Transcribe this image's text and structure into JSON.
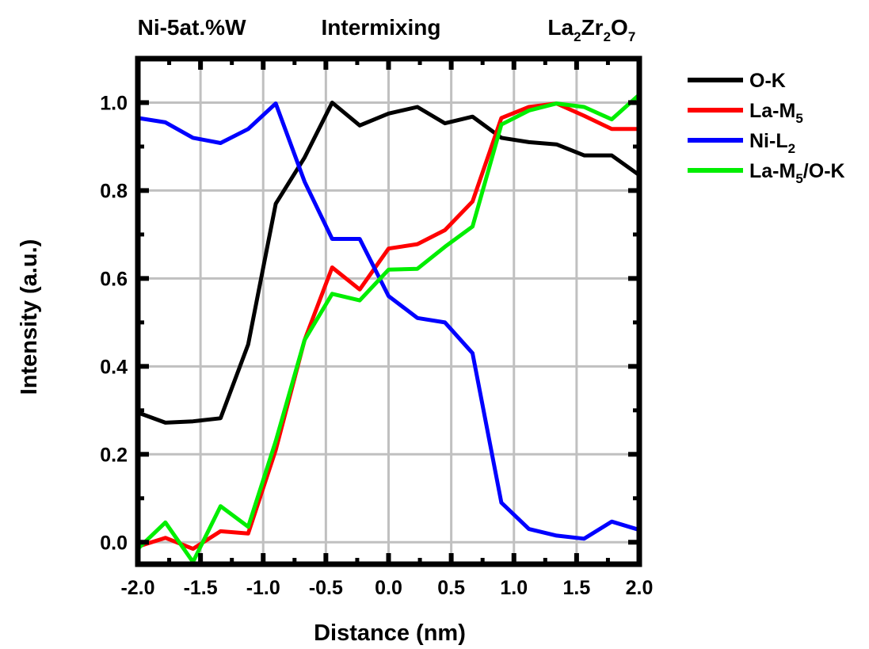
{
  "chart_data": {
    "type": "line",
    "xlabel": "Distance (nm)",
    "ylabel": "Intensity (a.u.)",
    "xlim": [
      -2.0,
      2.0
    ],
    "ylim": [
      -0.05,
      1.1
    ],
    "x_ticks": [
      -2.0,
      -1.5,
      -1.0,
      -0.5,
      0.0,
      0.5,
      1.0,
      1.5,
      2.0
    ],
    "x_tick_labels": [
      "-2.0",
      "-1.5",
      "-1.0",
      "-0.5",
      "0.0",
      "0.5",
      "1.0",
      "1.5",
      "2.0"
    ],
    "y_ticks": [
      0.0,
      0.2,
      0.4,
      0.6,
      0.8,
      1.0
    ],
    "y_tick_labels": [
      "0.0",
      "0.2",
      "0.4",
      "0.6",
      "0.8",
      "1.0"
    ],
    "grid": true,
    "legend_position": "outside-right",
    "region_labels": [
      {
        "text": "Ni-5at.%W",
        "x": -1.57
      },
      {
        "text": "Intermixing",
        "x": -0.06
      },
      {
        "text": "La",
        "sub": "2",
        "text2": "Zr",
        "sub2": "2",
        "text3": "O",
        "sub3": "7",
        "x": 1.62
      }
    ],
    "x": [
      -2.0,
      -1.78,
      -1.56,
      -1.34,
      -1.12,
      -0.9,
      -0.67,
      -0.45,
      -0.23,
      0.0,
      0.23,
      0.45,
      0.67,
      0.9,
      1.12,
      1.34,
      1.56,
      1.78,
      2.0
    ],
    "series": [
      {
        "name": "O-K",
        "name_main": "O-K",
        "name_sub": "",
        "name_tail": "",
        "color": "#000000",
        "values": [
          0.295,
          0.272,
          0.275,
          0.282,
          0.45,
          0.77,
          0.875,
          1.0,
          0.948,
          0.975,
          0.99,
          0.953,
          0.968,
          0.92,
          0.91,
          0.905,
          0.88,
          0.88,
          0.835
        ]
      },
      {
        "name": "La-M5",
        "name_main": "La-M",
        "name_sub": "5",
        "name_tail": "",
        "color": "#ff0000",
        "values": [
          -0.01,
          0.01,
          -0.015,
          0.025,
          0.02,
          0.21,
          0.46,
          0.625,
          0.575,
          0.668,
          0.678,
          0.71,
          0.775,
          0.965,
          0.99,
          0.998,
          0.97,
          0.94,
          0.94
        ]
      },
      {
        "name": "Ni-L2",
        "name_main": "Ni-L",
        "name_sub": "2",
        "name_tail": "",
        "color": "#0000ff",
        "values": [
          0.965,
          0.955,
          0.92,
          0.908,
          0.94,
          0.998,
          0.82,
          0.69,
          0.69,
          0.56,
          0.51,
          0.5,
          0.43,
          0.09,
          0.03,
          0.015,
          0.008,
          0.047,
          0.028
        ]
      },
      {
        "name": "La-M5/O-K",
        "name_main": "La-M",
        "name_sub": "5",
        "name_tail": "/O-K",
        "color": "#00ee00",
        "values": [
          -0.015,
          0.045,
          -0.045,
          0.082,
          0.035,
          0.23,
          0.46,
          0.565,
          0.55,
          0.62,
          0.622,
          0.672,
          0.718,
          0.95,
          0.982,
          0.998,
          0.99,
          0.962,
          1.018
        ]
      }
    ]
  }
}
